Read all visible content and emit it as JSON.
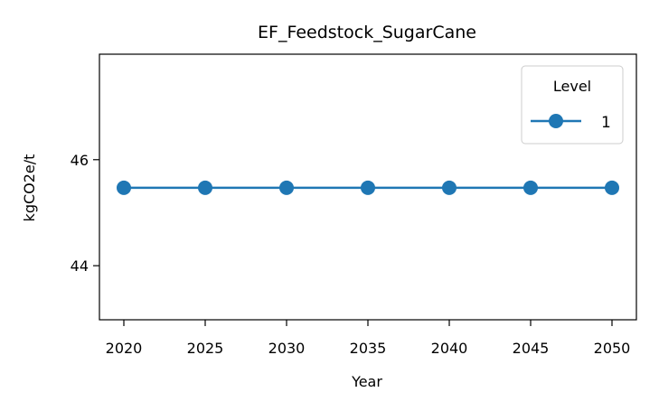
{
  "chart_data": {
    "type": "line",
    "title": "EF_Feedstock_SugarCane",
    "xlabel": "Year",
    "ylabel": "kgCO2e/t",
    "x": [
      2020,
      2025,
      2030,
      2035,
      2040,
      2045,
      2050
    ],
    "xticks": [
      2020,
      2025,
      2030,
      2035,
      2040,
      2045,
      2050
    ],
    "yticks": [
      44,
      46
    ],
    "xlim": [
      2018.5,
      2051.5
    ],
    "ylim": [
      42.98,
      47.99
    ],
    "grid": false,
    "legend": {
      "title": "Level",
      "placement": "top-right"
    },
    "series": [
      {
        "name": "1",
        "color": "#1f77b4",
        "marker": "circle",
        "values": [
          45.47,
          45.47,
          45.47,
          45.47,
          45.47,
          45.47,
          45.47
        ]
      }
    ]
  }
}
